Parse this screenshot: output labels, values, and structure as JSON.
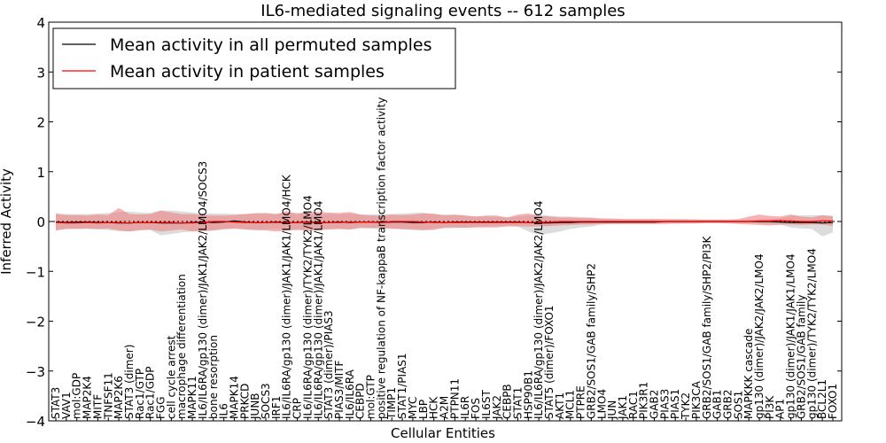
{
  "chart_data": {
    "type": "line",
    "title": "IL6-mediated signaling events -- 612 samples",
    "xlabel": "Cellular Entities",
    "ylabel": "Inferred Activity",
    "ylim": [
      -4,
      4
    ],
    "yticks": [
      -4,
      -3,
      -2,
      -1,
      0,
      1,
      2,
      3,
      4
    ],
    "legend_position": "top-left",
    "categories": [
      "STAT3",
      "VAV1",
      "mol:GDP",
      "MAP2K4",
      "MITF",
      "TNFSF11",
      "MAP2K6",
      "STAT3 (dimer)",
      "Rac1/GTP",
      "Rac1/GDP",
      "FGG",
      "cell cycle arrest",
      "macrophage differentiation",
      "MAPK11",
      "IL6/IL6RA/gp130 (dimer)/JAK1/JAK2/LMO4/SOCS3",
      "bone resorption",
      "IL6",
      "MAPK14",
      "PRKCD",
      "JUNB",
      "SOCS3",
      "IRF1",
      "IL6/IL6RA/gp130 (dimer)/JAK1/JAK1/LMO4/HCK",
      "CRP",
      "IL6/IL6RA/gp130 (dimer)/TYK2/TYK2/LMO4",
      "IL6/IL6RA/gp130 (dimer)/JAK1/JAK1/LMO4",
      "STAT3 (dimer)/PIAS3",
      "PIAS3/MITF",
      "IL6/IL6RA",
      "CEBPD",
      "mol:GTP",
      "positive regulation of NF-kappaB transcription factor activity",
      "TIMP1",
      "STAT1/PIAS1",
      "MYC",
      "LBP",
      "HCK",
      "A2M",
      "PTPN11",
      "IL6R",
      "FOS",
      "IL6ST",
      "JAK2",
      "CEBPB",
      "STAT1",
      "HSP90B1",
      "IL6/IL6RA/gp130 (dimer)/JAK2/JAK2/LMO4",
      "STAT5 (dimer)/FOXO1",
      "AKT1",
      "MCL1",
      "PTPRE",
      "GRB2/SOS1/GAB family/SHP2",
      "LMO4",
      "JUN",
      "JAK1",
      "RAC1",
      "PIK3R1",
      "GAB2",
      "PIAS3",
      "PIAS1",
      "TYK2",
      "PIK3CA",
      "GRB2/SOS1/GAB family/SHP2/PI3K",
      "GAB1",
      "GRB2",
      "SOS1",
      "MAPKKK cascade",
      "gp130 (dimer)/JAK2/JAK2/LMO4",
      "PI3K",
      "AP1",
      "gp130 (dimer)/JAK1/JAK1/LMO4",
      "GRB2/SOS1/GAB family",
      "gp130 (dimer)/TYK2/TYK2/LMO4",
      "BCL2L1",
      "FOXO1"
    ],
    "series": [
      {
        "name": "Mean activity in all permuted samples",
        "color": "#000000",
        "values": [
          -0.01,
          -0.02,
          -0.01,
          -0.01,
          -0.02,
          -0.02,
          -0.03,
          -0.03,
          -0.02,
          -0.02,
          -0.03,
          -0.03,
          -0.03,
          -0.02,
          -0.01,
          -0.02,
          -0.01,
          0.01,
          -0.01,
          -0.02,
          -0.02,
          -0.01,
          -0.02,
          -0.02,
          -0.01,
          -0.02,
          -0.02,
          -0.01,
          -0.02,
          -0.01,
          -0.01,
          -0.02,
          -0.01,
          -0.01,
          -0.02,
          -0.02,
          -0.01,
          -0.02,
          -0.01,
          -0.01,
          -0.01,
          -0.01,
          -0.01,
          -0.01,
          -0.01,
          -0.02,
          -0.03,
          -0.03,
          -0.02,
          -0.02,
          -0.01,
          -0.01,
          -0.01,
          -0.01,
          -0.01,
          -0.01,
          -0.01,
          -0.01,
          0.0,
          0.0,
          0.0,
          0.0,
          0.0,
          0.0,
          0.0,
          0.0,
          0.0,
          0.0,
          0.0,
          -0.01,
          -0.02,
          -0.02,
          -0.02,
          -0.03,
          -0.02
        ],
        "band": [
          [
            -0.17,
            0.17
          ],
          [
            -0.15,
            0.15
          ],
          [
            -0.15,
            0.15
          ],
          [
            -0.15,
            0.15
          ],
          [
            -0.16,
            0.16
          ],
          [
            -0.17,
            0.17
          ],
          [
            -0.19,
            0.19
          ],
          [
            -0.2,
            0.2
          ],
          [
            -0.18,
            0.18
          ],
          [
            -0.17,
            0.17
          ],
          [
            -0.28,
            0.22
          ],
          [
            -0.25,
            0.22
          ],
          [
            -0.22,
            0.2
          ],
          [
            -0.2,
            0.18
          ],
          [
            -0.18,
            0.16
          ],
          [
            -0.18,
            0.16
          ],
          [
            -0.16,
            0.16
          ],
          [
            -0.15,
            0.15
          ],
          [
            -0.15,
            0.15
          ],
          [
            -0.17,
            0.17
          ],
          [
            -0.16,
            0.16
          ],
          [
            -0.15,
            0.15
          ],
          [
            -0.17,
            0.17
          ],
          [
            -0.18,
            0.18
          ],
          [
            -0.16,
            0.16
          ],
          [
            -0.16,
            0.16
          ],
          [
            -0.15,
            0.15
          ],
          [
            -0.15,
            0.15
          ],
          [
            -0.16,
            0.16
          ],
          [
            -0.14,
            0.14
          ],
          [
            -0.14,
            0.14
          ],
          [
            -0.15,
            0.15
          ],
          [
            -0.15,
            0.15
          ],
          [
            -0.16,
            0.16
          ],
          [
            -0.17,
            0.17
          ],
          [
            -0.18,
            0.18
          ],
          [
            -0.14,
            0.14
          ],
          [
            -0.14,
            0.14
          ],
          [
            -0.13,
            0.13
          ],
          [
            -0.12,
            0.12
          ],
          [
            -0.1,
            0.1
          ],
          [
            -0.1,
            0.1
          ],
          [
            -0.09,
            0.09
          ],
          [
            -0.08,
            0.08
          ],
          [
            -0.1,
            0.1
          ],
          [
            -0.2,
            0.12
          ],
          [
            -0.26,
            0.12
          ],
          [
            -0.24,
            0.12
          ],
          [
            -0.2,
            0.1
          ],
          [
            -0.15,
            0.1
          ],
          [
            -0.12,
            0.09
          ],
          [
            -0.1,
            0.08
          ],
          [
            -0.06,
            0.06
          ],
          [
            -0.05,
            0.05
          ],
          [
            -0.05,
            0.05
          ],
          [
            -0.05,
            0.05
          ],
          [
            -0.05,
            0.05
          ],
          [
            -0.05,
            0.05
          ],
          [
            -0.04,
            0.04
          ],
          [
            -0.04,
            0.04
          ],
          [
            -0.04,
            0.04
          ],
          [
            -0.04,
            0.04
          ],
          [
            -0.03,
            0.03
          ],
          [
            -0.03,
            0.03
          ],
          [
            -0.03,
            0.03
          ],
          [
            -0.03,
            0.03
          ],
          [
            -0.03,
            0.03
          ],
          [
            -0.04,
            0.04
          ],
          [
            -0.05,
            0.05
          ],
          [
            -0.07,
            0.07
          ],
          [
            -0.12,
            0.12
          ],
          [
            -0.14,
            0.12
          ],
          [
            -0.15,
            0.13
          ],
          [
            -0.3,
            0.12
          ],
          [
            -0.22,
            0.12
          ]
        ]
      },
      {
        "name": "Mean activity in patient samples",
        "color": "#ff0000",
        "values": [
          -0.02,
          -0.03,
          -0.03,
          -0.02,
          -0.03,
          -0.02,
          -0.02,
          -0.03,
          -0.02,
          -0.02,
          -0.02,
          -0.02,
          -0.03,
          -0.03,
          -0.02,
          0.0,
          0.0,
          -0.01,
          -0.02,
          -0.02,
          -0.02,
          -0.02,
          -0.02,
          -0.02,
          -0.02,
          -0.02,
          -0.02,
          -0.02,
          -0.01,
          -0.01,
          -0.01,
          -0.02,
          0.0,
          0.0,
          0.0,
          -0.01,
          -0.02,
          -0.02,
          -0.02,
          -0.02,
          -0.02,
          -0.02,
          -0.02,
          -0.02,
          -0.02,
          -0.02,
          -0.02,
          -0.01,
          0.0,
          0.0,
          0.0,
          0.0,
          0.0,
          0.0,
          0.0,
          0.0,
          0.0,
          0.0,
          0.0,
          0.0,
          0.0,
          0.0,
          0.0,
          0.0,
          0.0,
          0.0,
          0.0,
          0.01,
          0.01,
          0.02,
          0.01,
          0.0,
          0.0,
          0.01,
          0.01
        ],
        "band": [
          [
            -0.18,
            0.15
          ],
          [
            -0.15,
            0.13
          ],
          [
            -0.15,
            0.13
          ],
          [
            -0.14,
            0.12
          ],
          [
            -0.15,
            0.14
          ],
          [
            -0.14,
            0.13
          ],
          [
            -0.18,
            0.27
          ],
          [
            -0.2,
            0.15
          ],
          [
            -0.17,
            0.14
          ],
          [
            -0.16,
            0.15
          ],
          [
            -0.2,
            0.22
          ],
          [
            -0.18,
            0.18
          ],
          [
            -0.16,
            0.15
          ],
          [
            -0.2,
            0.15
          ],
          [
            -0.2,
            0.13
          ],
          [
            -0.18,
            0.12
          ],
          [
            -0.15,
            0.12
          ],
          [
            -0.14,
            0.13
          ],
          [
            -0.16,
            0.15
          ],
          [
            -0.17,
            0.16
          ],
          [
            -0.18,
            0.17
          ],
          [
            -0.2,
            0.15
          ],
          [
            -0.18,
            0.21
          ],
          [
            -0.16,
            0.15
          ],
          [
            -0.19,
            0.2
          ],
          [
            -0.17,
            0.19
          ],
          [
            -0.16,
            0.18
          ],
          [
            -0.15,
            0.17
          ],
          [
            -0.16,
            0.19
          ],
          [
            -0.12,
            0.14
          ],
          [
            -0.13,
            0.12
          ],
          [
            -0.13,
            0.12
          ],
          [
            -0.14,
            0.14
          ],
          [
            -0.15,
            0.13
          ],
          [
            -0.16,
            0.14
          ],
          [
            -0.17,
            0.16
          ],
          [
            -0.17,
            0.16
          ],
          [
            -0.12,
            0.12
          ],
          [
            -0.12,
            0.14
          ],
          [
            -0.13,
            0.12
          ],
          [
            -0.12,
            0.1
          ],
          [
            -0.12,
            0.12
          ],
          [
            -0.12,
            0.12
          ],
          [
            -0.1,
            0.08
          ],
          [
            -0.1,
            0.14
          ],
          [
            -0.1,
            0.16
          ],
          [
            -0.1,
            0.12
          ],
          [
            -0.09,
            0.1
          ],
          [
            -0.08,
            0.08
          ],
          [
            -0.07,
            0.08
          ],
          [
            -0.06,
            0.07
          ],
          [
            -0.06,
            0.07
          ],
          [
            -0.05,
            0.06
          ],
          [
            -0.05,
            0.06
          ],
          [
            -0.05,
            0.05
          ],
          [
            -0.05,
            0.05
          ],
          [
            -0.05,
            0.05
          ],
          [
            -0.05,
            0.05
          ],
          [
            -0.05,
            0.05
          ],
          [
            -0.04,
            0.05
          ],
          [
            -0.04,
            0.05
          ],
          [
            -0.04,
            0.04
          ],
          [
            -0.03,
            0.04
          ],
          [
            -0.03,
            0.04
          ],
          [
            -0.04,
            0.04
          ],
          [
            -0.05,
            0.05
          ],
          [
            -0.06,
            0.1
          ],
          [
            -0.07,
            0.14
          ],
          [
            -0.08,
            0.11
          ],
          [
            -0.06,
            0.1
          ],
          [
            -0.06,
            0.14
          ],
          [
            -0.07,
            0.1
          ],
          [
            -0.06,
            0.08
          ],
          [
            -0.06,
            0.13
          ],
          [
            -0.09,
            0.1
          ]
        ]
      }
    ]
  }
}
